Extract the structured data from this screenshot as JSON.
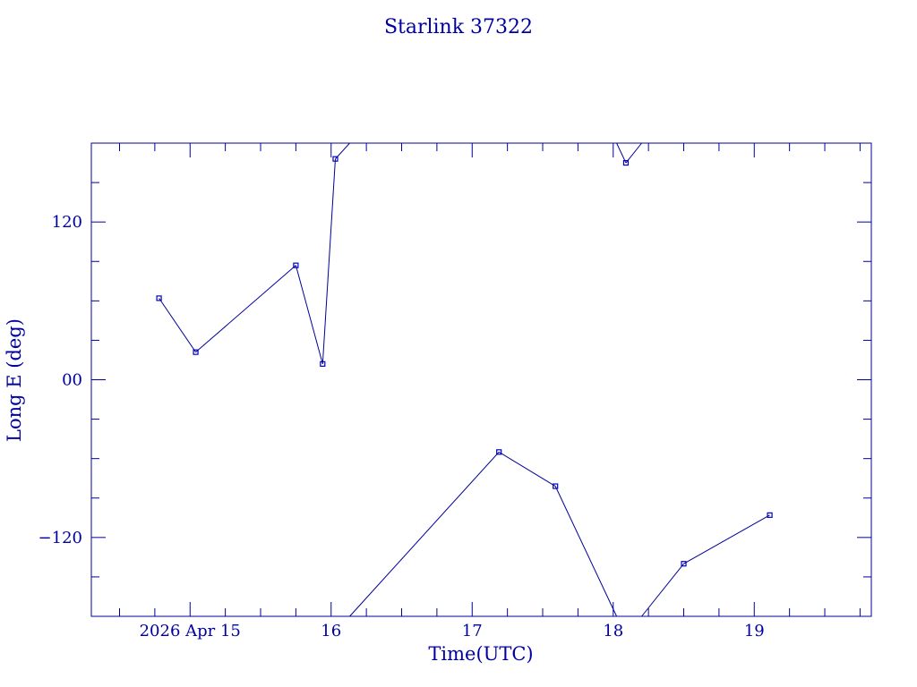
{
  "chart_data": {
    "type": "line",
    "title": "Starlink 37322",
    "xlabel": "Time(UTC)",
    "ylabel": "Long E (deg)",
    "xlim": [
      14.3,
      19.83
    ],
    "ylim": [
      -180,
      180
    ],
    "xticks": [
      {
        "value": 15,
        "label": "2026 Apr 15"
      },
      {
        "value": 16,
        "label": "16"
      },
      {
        "value": 17,
        "label": "17"
      },
      {
        "value": 18,
        "label": "18"
      },
      {
        "value": 19,
        "label": "19"
      }
    ],
    "yticks": [
      {
        "value": 120,
        "label": "120"
      },
      {
        "value": 0,
        "label": "00"
      },
      {
        "value": -120,
        "label": "−120"
      }
    ],
    "grid": false,
    "series": [
      {
        "x": [
          14.78,
          15.04,
          15.75,
          15.94,
          16.03,
          17.19,
          17.59,
          18.09,
          18.5,
          19.11
        ],
        "y": [
          62,
          21,
          87,
          12,
          168,
          -55,
          -81,
          165,
          -140,
          -103
        ]
      }
    ],
    "wrap_longitude": true,
    "colors": {
      "line": "#00009a",
      "marker": "#0000c0",
      "axes": "#00009a",
      "text": "#0000a0"
    }
  }
}
